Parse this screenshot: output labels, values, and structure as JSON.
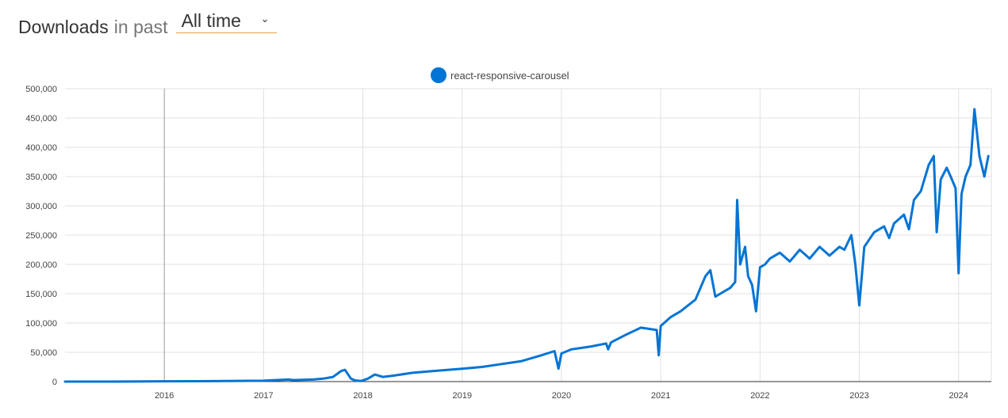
{
  "header": {
    "title": "Downloads",
    "subtitle": "in past",
    "range_value": "All time"
  },
  "colors": {
    "series": "#0274d4",
    "grid": "#e0e0e0",
    "dropdown_underline": "#e8a33d"
  },
  "icons": {
    "dropdown": "chevron-down-icon"
  },
  "chart_data": {
    "type": "line",
    "title": "",
    "xlabel": "",
    "ylabel": "",
    "legend_position": "top-center",
    "grid": true,
    "xlim": [
      2015.0,
      2024.33
    ],
    "ylim": [
      0,
      500000
    ],
    "yticks": [
      0,
      50000,
      100000,
      150000,
      200000,
      250000,
      300000,
      350000,
      400000,
      450000,
      500000
    ],
    "ytick_labels": [
      "0",
      "50,000",
      "100,000",
      "150,000",
      "200,000",
      "250,000",
      "300,000",
      "350,000",
      "400,000",
      "450,000",
      "500,000"
    ],
    "xticks": [
      2016,
      2017,
      2018,
      2019,
      2020,
      2021,
      2022,
      2023,
      2024
    ],
    "xtick_labels": [
      "2016",
      "2017",
      "2018",
      "2019",
      "2020",
      "2021",
      "2022",
      "2023",
      "2024"
    ],
    "series": [
      {
        "name": "react-responsive-carousel",
        "x": [
          2015.0,
          2015.5,
          2016.0,
          2016.5,
          2017.0,
          2017.25,
          2017.3,
          2017.5,
          2017.6,
          2017.7,
          2017.78,
          2017.82,
          2017.88,
          2017.92,
          2017.98,
          2018.05,
          2018.12,
          2018.2,
          2018.3,
          2018.5,
          2018.7,
          2018.85,
          2019.0,
          2019.2,
          2019.4,
          2019.6,
          2019.8,
          2019.93,
          2019.97,
          2020.0,
          2020.1,
          2020.3,
          2020.45,
          2020.47,
          2020.5,
          2020.65,
          2020.8,
          2020.96,
          2020.98,
          2021.0,
          2021.1,
          2021.2,
          2021.35,
          2021.45,
          2021.5,
          2021.55,
          2021.6,
          2021.7,
          2021.75,
          2021.77,
          2021.8,
          2021.85,
          2021.88,
          2021.92,
          2021.96,
          2022.0,
          2022.05,
          2022.1,
          2022.2,
          2022.3,
          2022.4,
          2022.5,
          2022.6,
          2022.7,
          2022.8,
          2022.85,
          2022.92,
          2022.96,
          2023.0,
          2023.05,
          2023.15,
          2023.25,
          2023.3,
          2023.35,
          2023.45,
          2023.5,
          2023.55,
          2023.62,
          2023.7,
          2023.75,
          2023.78,
          2023.82,
          2023.88,
          2023.92,
          2023.97,
          2024.0,
          2024.03,
          2024.07,
          2024.12,
          2024.16,
          2024.21,
          2024.26,
          2024.3
        ],
        "values": [
          0,
          0,
          500,
          800,
          1500,
          3500,
          2500,
          3500,
          5000,
          8000,
          18000,
          20000,
          5000,
          2000,
          1000,
          5000,
          12000,
          8000,
          10000,
          15000,
          18000,
          20000,
          22000,
          25000,
          30000,
          35000,
          45000,
          52000,
          22000,
          48000,
          55000,
          60000,
          65000,
          55000,
          67000,
          80000,
          92000,
          88000,
          45000,
          95000,
          110000,
          120000,
          140000,
          180000,
          190000,
          145000,
          150000,
          160000,
          170000,
          310000,
          200000,
          230000,
          180000,
          165000,
          120000,
          195000,
          200000,
          210000,
          220000,
          205000,
          225000,
          210000,
          230000,
          215000,
          230000,
          225000,
          250000,
          200000,
          130000,
          230000,
          255000,
          265000,
          245000,
          270000,
          285000,
          260000,
          310000,
          325000,
          370000,
          385000,
          255000,
          345000,
          365000,
          350000,
          330000,
          185000,
          320000,
          350000,
          370000,
          465000,
          385000,
          350000,
          385000
        ]
      }
    ]
  }
}
